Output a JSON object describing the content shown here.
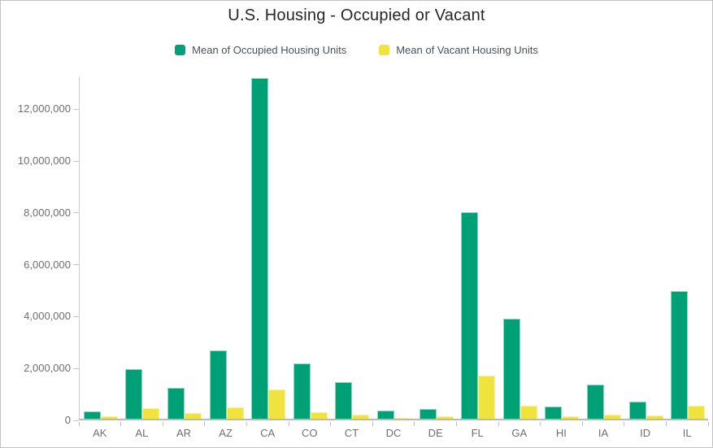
{
  "window": {
    "background_color": "#ffffff",
    "border_color": "#c3c3c3"
  },
  "legend": {
    "occupied_label": "Mean of Occupied Housing Units",
    "vacant_label": "Mean of Vacant Housing Units"
  },
  "chart_data": {
    "type": "bar",
    "title": "U.S. Housing - Occupied or Vacant",
    "xlabel": "",
    "ylabel": "",
    "grid": false,
    "legend_position": "top-center",
    "categories": [
      "AK",
      "AL",
      "AR",
      "AZ",
      "CA",
      "CO",
      "CT",
      "DC",
      "DE",
      "FL",
      "GA",
      "HI",
      "IA",
      "ID",
      "IL"
    ],
    "series": [
      {
        "name": "Mean of Occupied Housing Units",
        "color": "#00a077",
        "edge_color": "#8fd6bb",
        "values": [
          270000,
          1900000,
          1180000,
          2640000,
          13150000,
          2140000,
          1410000,
          300000,
          380000,
          7950000,
          3870000,
          480000,
          1310000,
          660000,
          4920000
        ]
      },
      {
        "name": "Mean of Vacant Housing Units",
        "color": "#f0e33e",
        "edge_color": "#f7f1a3",
        "values": [
          85000,
          420000,
          230000,
          440000,
          1130000,
          250000,
          170000,
          40000,
          90000,
          1650000,
          500000,
          110000,
          170000,
          130000,
          500000
        ]
      }
    ],
    "ylim": [
      0,
      13400000
    ],
    "yticks": [
      {
        "value": 0,
        "label": "0"
      },
      {
        "value": 2000000,
        "label": "2,000,000"
      },
      {
        "value": 4000000,
        "label": "4,000,000"
      },
      {
        "value": 6000000,
        "label": "6,000,000"
      },
      {
        "value": 8000000,
        "label": "8,000,000"
      },
      {
        "value": 10000000,
        "label": "10,000,000"
      },
      {
        "value": 12000000,
        "label": "12,000,000"
      }
    ]
  }
}
